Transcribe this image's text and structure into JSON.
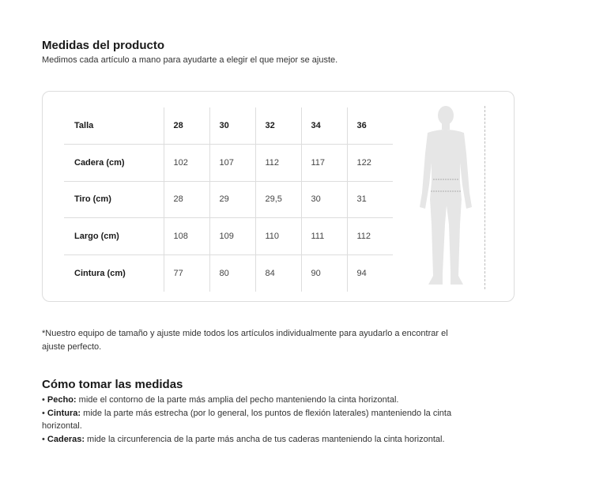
{
  "title": "Medidas del producto",
  "subtitle": "Medimos cada artículo a mano para ayudarte a elegir el que mejor se ajuste.",
  "table": {
    "header": {
      "label": "Talla",
      "sizes": [
        "28",
        "30",
        "32",
        "34",
        "36"
      ]
    },
    "rows": [
      {
        "label": "Cadera (cm)",
        "values": [
          "102",
          "107",
          "112",
          "117",
          "122"
        ]
      },
      {
        "label": "Tiro (cm)",
        "values": [
          "28",
          "29",
          "29,5",
          "30",
          "31"
        ]
      },
      {
        "label": "Largo (cm)",
        "values": [
          "108",
          "109",
          "110",
          "111",
          "112"
        ]
      },
      {
        "label": "Cintura (cm)",
        "values": [
          "77",
          "80",
          "84",
          "90",
          "94"
        ]
      }
    ]
  },
  "note": "*Nuestro equipo de tamaño y ajuste mide todos los artículos individualmente para ayudarlo a encontrar el ajuste perfecto.",
  "how_to": {
    "title": "Cómo tomar las medidas",
    "items": [
      {
        "term": "Pecho:",
        "text": " mide el contorno de la parte más amplia del pecho manteniendo la cinta horizontal."
      },
      {
        "term": "Cintura:",
        "text": " mide la parte más estrecha (por lo general, los puntos de flexión laterales) manteniendo la cinta horizontal."
      },
      {
        "term": "Caderas:",
        "text": " mide la circunferencia de la parte más ancha de tus caderas manteniendo la cinta horizontal."
      }
    ]
  }
}
